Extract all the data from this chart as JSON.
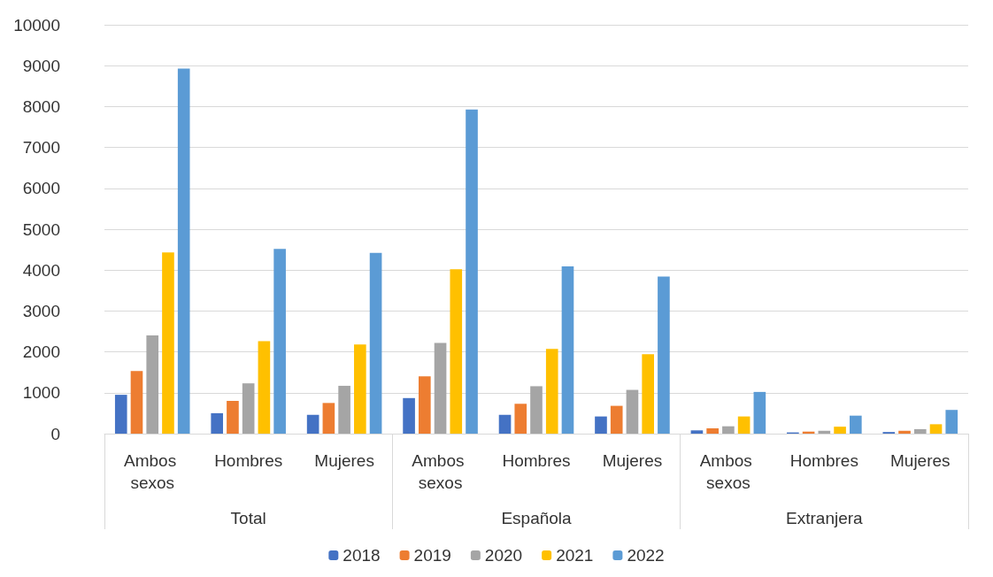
{
  "chart_data": {
    "type": "bar",
    "categories": [
      "Ambos sexos",
      "Hombres",
      "Mujeres",
      "Ambos sexos",
      "Hombres",
      "Mujeres",
      "Ambos sexos",
      "Hombres",
      "Mujeres"
    ],
    "annotations": [
      "Total",
      "Española",
      "Extranjera"
    ],
    "series": [
      {
        "name": "2018",
        "color": "#4472c4",
        "values": [
          950,
          500,
          460,
          870,
          460,
          420,
          80,
          30,
          40
        ]
      },
      {
        "name": "2019",
        "color": "#ed7d31",
        "values": [
          1530,
          800,
          750,
          1400,
          730,
          680,
          130,
          50,
          70
        ]
      },
      {
        "name": "2020",
        "color": "#a5a5a5",
        "values": [
          2400,
          1230,
          1170,
          2220,
          1160,
          1070,
          180,
          70,
          110
        ]
      },
      {
        "name": "2021",
        "color": "#ffc000",
        "values": [
          4430,
          2260,
          2180,
          4020,
          2070,
          1940,
          420,
          170,
          230
        ]
      },
      {
        "name": "2022",
        "color": "#5b9bd5",
        "values": [
          8930,
          4520,
          4420,
          7930,
          4090,
          3840,
          1020,
          440,
          580
        ]
      }
    ],
    "ylim": [
      0,
      10000
    ],
    "yticks": [
      0,
      1000,
      2000,
      3000,
      4000,
      5000,
      6000,
      7000,
      8000,
      9000,
      10000
    ],
    "grid": "y",
    "legend": "bottom"
  }
}
